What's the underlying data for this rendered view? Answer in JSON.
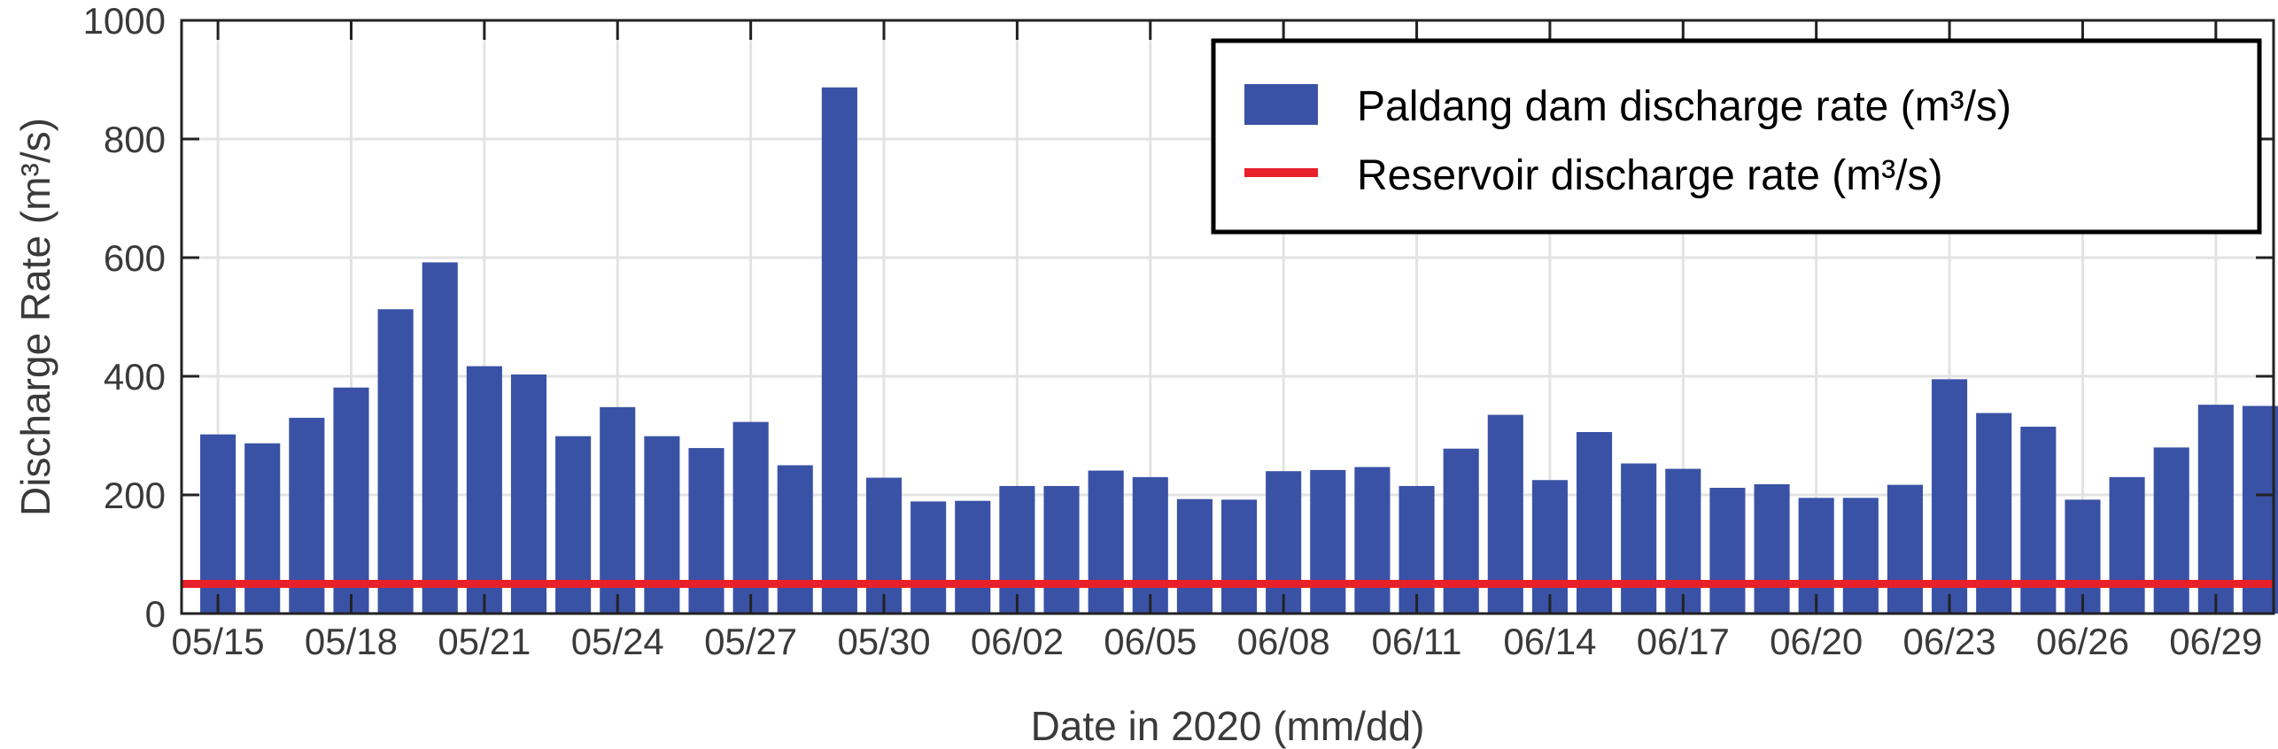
{
  "chart_data": {
    "type": "bar",
    "xlabel": "Date in 2020 (mm/dd)",
    "ylabel": "Discharge Rate (m³/s)",
    "ylim": [
      0,
      1000
    ],
    "yticks": [
      0,
      200,
      400,
      600,
      800,
      1000
    ],
    "xtick_labels": [
      "05/15",
      "05/18",
      "05/21",
      "05/24",
      "05/27",
      "05/30",
      "06/02",
      "06/05",
      "06/08",
      "06/11",
      "06/14",
      "06/17",
      "06/20",
      "06/23",
      "06/26",
      "06/29"
    ],
    "grid": true,
    "legend_position": "top-right",
    "categories": [
      "05/15",
      "05/16",
      "05/17",
      "05/18",
      "05/19",
      "05/20",
      "05/21",
      "05/22",
      "05/23",
      "05/24",
      "05/25",
      "05/26",
      "05/27",
      "05/28",
      "05/29",
      "05/30",
      "05/31",
      "06/01",
      "06/02",
      "06/03",
      "06/04",
      "06/05",
      "06/06",
      "06/07",
      "06/08",
      "06/09",
      "06/10",
      "06/11",
      "06/12",
      "06/13",
      "06/14",
      "06/15",
      "06/16",
      "06/17",
      "06/18",
      "06/19",
      "06/20",
      "06/21",
      "06/22",
      "06/23",
      "06/24",
      "06/25",
      "06/26",
      "06/27",
      "06/28",
      "06/29",
      "06/30"
    ],
    "series": [
      {
        "name": "Paldang dam discharge rate (m³/s)",
        "type": "bar",
        "color": "#3a52a6",
        "values": [
          302,
          287,
          330,
          381,
          513,
          592,
          417,
          403,
          299,
          348,
          299,
          279,
          323,
          250,
          887,
          229,
          189,
          190,
          215,
          215,
          241,
          230,
          193,
          192,
          240,
          242,
          247,
          215,
          278,
          335,
          225,
          306,
          253,
          244,
          212,
          218,
          195,
          195,
          217,
          395,
          338,
          315,
          192,
          230,
          280,
          352,
          350
        ]
      },
      {
        "name": "Reservoir discharge rate (m³/s)",
        "type": "line",
        "color": "#e8202a",
        "value": 50
      }
    ]
  }
}
